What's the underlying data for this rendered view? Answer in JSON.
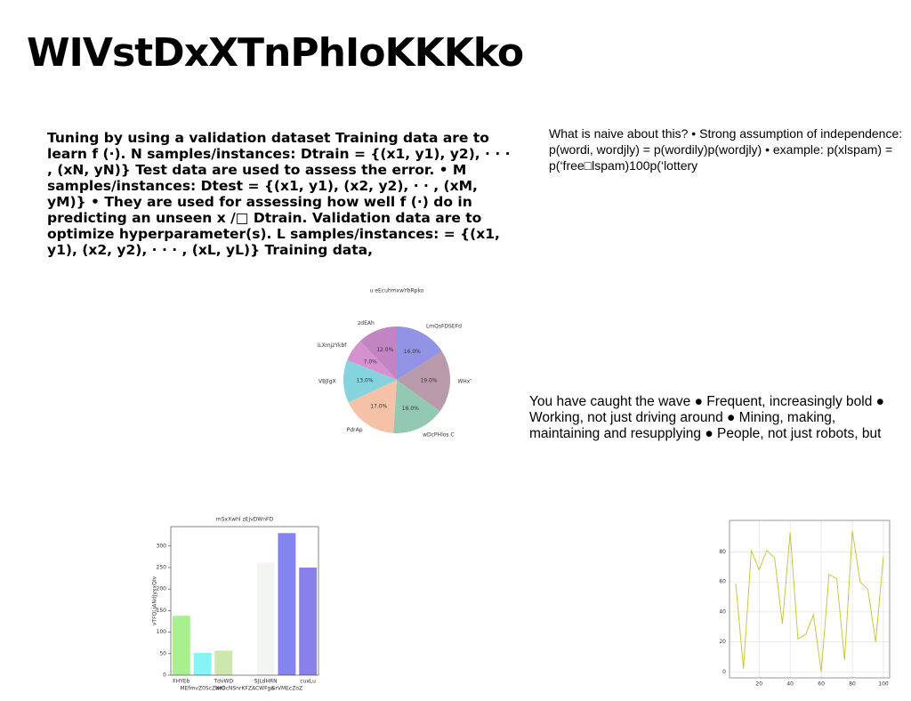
{
  "title": "WIVstDxXTnPhIoKKKko",
  "paragraphs": [
    "Tuning by using a validation dataset Training data are to learn f (·). N samples/instances: Dtrain = {(x1, y1), y2), · · · , (xN, yN)} Test data are used to assess the error. • M samples/instances: Dtest = {(x1, y1), (x2, y2), · · , (xM, yM)} • They are used for assessing how well f (·) do in predicting an unseen x /□ Dtrain. Validation data are to optimize hyperparameter(s). L samples/instances: = {(x1, y1), (x2, y2), · · · , (xL, yL)} Training data,",
    "What is naive about this? • Strong assumption of independence: p(wordi, wordjly) = p(wordily)p(wordjly) • example: p(xlspam) = p(‘free□lspam)100p(‘lottery",
    "You have caught the wave ● Frequent, increasingly bold ● Working, not just driving around ● Mining, making, maintaining and resupplying ● People, not just robots, but"
  ],
  "chart_data": [
    {
      "type": "pie",
      "title": "u eEcuhmxwYbRpko",
      "categories": [
        "LmQsFDSEFd",
        "WHxTyczkfj",
        "wDcPHlos C",
        "PdrAp",
        "VBJlgX",
        "iLXmjzYkbf",
        "zdEAh"
      ],
      "values": [
        16,
        19,
        16,
        17,
        13,
        7,
        12
      ],
      "value_labels": [
        "16.0%",
        "19.0%",
        "16.0%",
        "17.0%",
        "13.0%",
        "7.0%",
        "12.0%"
      ],
      "colors": [
        "#9393e6",
        "#b99aab",
        "#93c8b2",
        "#f5c2a8",
        "#86d3e0",
        "#d592cf",
        "#c384c4"
      ]
    },
    {
      "type": "bar",
      "title": "mSxXwhl zEjvDWnFD",
      "ylabel": "vTFQLjANdJyxxQIv",
      "categories": [
        "FHYEb",
        "MEfmvZ0ScZwKl",
        "TdvWD",
        "NrOcNSnrKFZACWFga",
        "SJLdHRN",
        "GrVMEcZoZ",
        "cuxLu"
      ],
      "values": [
        138,
        52,
        57,
        0,
        262,
        330,
        250
      ],
      "colors": [
        "#a8f08e",
        "#86f4f6",
        "#cde8ae",
        "#dddddd",
        "#f3f5f3",
        "#8484ee",
        "#8a80ec"
      ],
      "ylim": [
        0,
        345
      ],
      "yticks": [
        0,
        50,
        100,
        150,
        200,
        250,
        300
      ]
    },
    {
      "type": "line",
      "color": "#c8c83c",
      "grid": true,
      "x": [
        5,
        10,
        15,
        20,
        25,
        30,
        35,
        40,
        45,
        50,
        55,
        60,
        65,
        70,
        75,
        80,
        85,
        90,
        95,
        100
      ],
      "values": [
        59,
        2,
        81,
        68,
        81,
        76,
        32,
        93,
        22,
        25,
        38,
        0,
        65,
        62,
        8,
        94,
        60,
        55,
        20,
        77
      ],
      "xlim": [
        1,
        104
      ],
      "xticks": [
        20,
        40,
        60,
        80,
        100
      ],
      "ylim": [
        -4,
        101
      ],
      "yticks": [
        0,
        20,
        40,
        60,
        80
      ]
    }
  ]
}
